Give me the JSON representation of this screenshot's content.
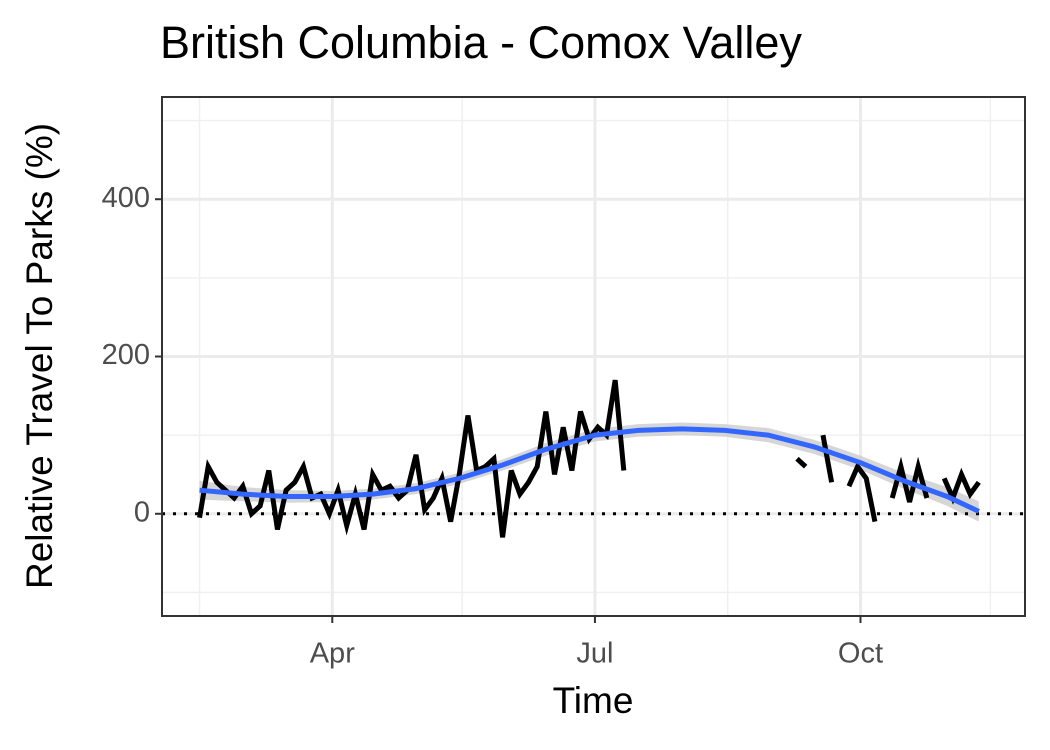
{
  "chart_data": {
    "type": "line",
    "title": "British Columbia - Comox Valley",
    "xlabel": "Time",
    "ylabel": "Relative Travel To Parks (%)",
    "xlim": [
      33,
      332
    ],
    "xticks": [
      {
        "value": 92,
        "label": "Apr"
      },
      {
        "value": 183,
        "label": "Jul"
      },
      {
        "value": 275,
        "label": "Oct"
      }
    ],
    "xminor": [
      46,
      137,
      229,
      320
    ],
    "ylim": [
      -130,
      530
    ],
    "yticks": [
      0,
      200,
      400
    ],
    "yminor": [
      -100,
      100,
      300,
      500
    ],
    "grid": true,
    "hline": 0,
    "series": [
      {
        "color": "#000000",
        "x": [
          46,
          49,
          52,
          55,
          58,
          61,
          64,
          67,
          70,
          73,
          76,
          79,
          82,
          85,
          88,
          91,
          94,
          97,
          100,
          103,
          106,
          109,
          112,
          115,
          118,
          121,
          124,
          127,
          130,
          133,
          136,
          139,
          142,
          145,
          148,
          151,
          154,
          157,
          160,
          163,
          166,
          169,
          172,
          175,
          178,
          181,
          184,
          187,
          190,
          193,
          196,
          199,
          202,
          205,
          208,
          211,
          214,
          217,
          220,
          223,
          226,
          229,
          232,
          235,
          238,
          241,
          244,
          247,
          250,
          253,
          256,
          259,
          262,
          265,
          268,
          271,
          274,
          277,
          280,
          283,
          286,
          289,
          292,
          295,
          298,
          301,
          304,
          307,
          310,
          313,
          316
        ],
        "values": [
          -5,
          60,
          40,
          30,
          20,
          35,
          0,
          10,
          55,
          -20,
          30,
          40,
          60,
          20,
          25,
          0,
          30,
          -15,
          25,
          -20,
          50,
          30,
          35,
          20,
          30,
          75,
          5,
          20,
          45,
          -10,
          50,
          125,
          55,
          60,
          70,
          -30,
          55,
          25,
          40,
          60,
          130,
          50,
          110,
          55,
          130,
          95,
          110,
          100,
          170,
          55,
          null,
          null,
          null,
          null,
          null,
          null,
          null,
          null,
          null,
          null,
          null,
          null,
          null,
          null,
          null,
          null,
          null,
          null,
          null,
          70,
          60,
          null,
          100,
          40,
          null,
          35,
          60,
          45,
          -10,
          null,
          20,
          60,
          15,
          60,
          20,
          null,
          45,
          20,
          50,
          25,
          40
        ]
      }
    ],
    "smooth": {
      "color": "#3366ff",
      "band_color": "#cccccc",
      "x": [
        46,
        61,
        76,
        92,
        106,
        121,
        136,
        151,
        166,
        183,
        198,
        213,
        228,
        243,
        259,
        275,
        290,
        305,
        316
      ],
      "values": [
        30,
        25,
        22,
        22,
        25,
        32,
        45,
        62,
        82,
        100,
        106,
        108,
        106,
        100,
        85,
        65,
        42,
        22,
        3
      ],
      "lower": [
        18,
        16,
        14,
        15,
        18,
        25,
        38,
        55,
        74,
        92,
        98,
        100,
        98,
        91,
        76,
        56,
        32,
        10,
        -10
      ],
      "upper": [
        42,
        34,
        30,
        29,
        32,
        39,
        52,
        69,
        90,
        108,
        114,
        116,
        114,
        109,
        94,
        74,
        52,
        34,
        16
      ]
    }
  }
}
